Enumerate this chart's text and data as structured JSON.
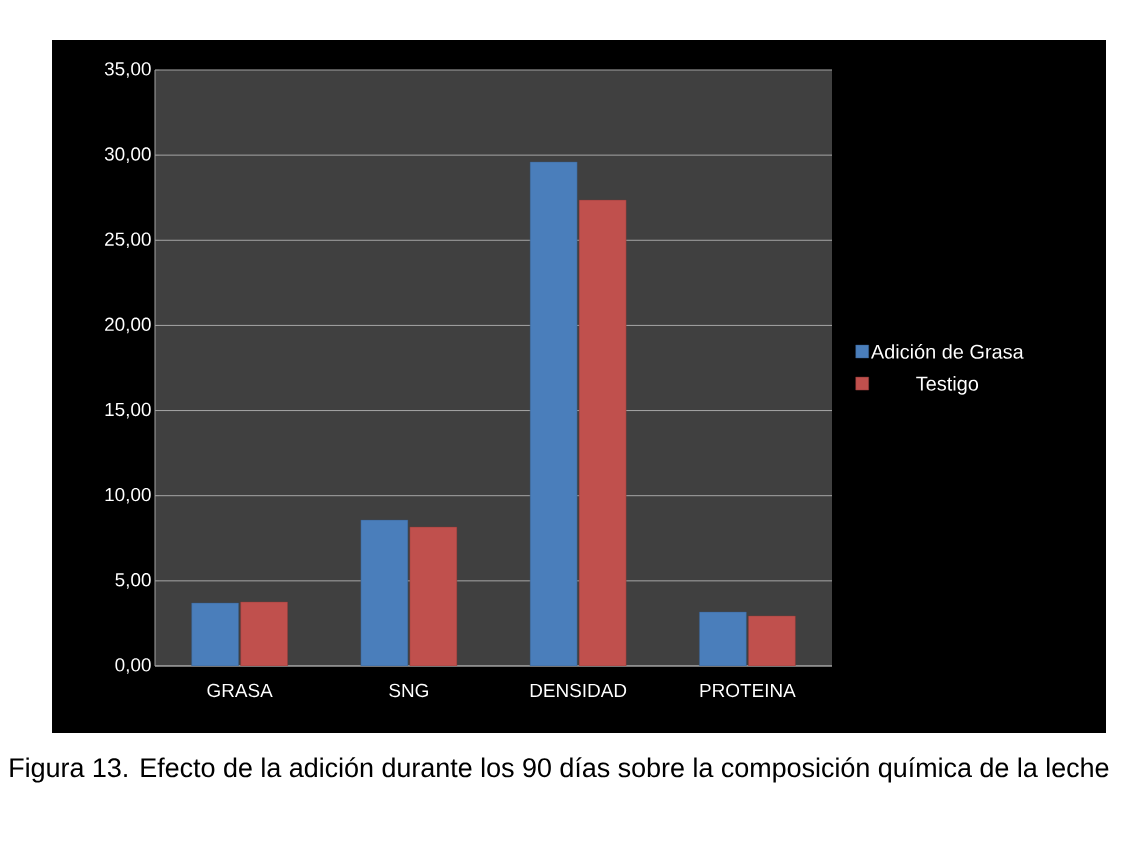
{
  "chart_data": {
    "type": "bar",
    "categories": [
      "GRASA",
      "SNG",
      "DENSIDAD",
      "PROTEINA"
    ],
    "series": [
      {
        "name": "Adición de Grasa",
        "color": "#4a7ebb",
        "values": [
          3.7,
          8.57,
          29.6,
          3.17
        ]
      },
      {
        "name": "Testigo",
        "color": "#c0504d",
        "values": [
          3.76,
          8.16,
          27.36,
          2.94
        ]
      }
    ],
    "ylim": [
      0,
      35
    ],
    "yticks": [
      {
        "value": 0,
        "label": "0,00"
      },
      {
        "value": 5,
        "label": "5,00"
      },
      {
        "value": 10,
        "label": "10,00"
      },
      {
        "value": 15,
        "label": "15,00"
      },
      {
        "value": 20,
        "label": "20,00"
      },
      {
        "value": 25,
        "label": "25,00"
      },
      {
        "value": 30,
        "label": "30,00"
      },
      {
        "value": 35,
        "label": "35,00"
      }
    ],
    "grid": "y",
    "legend": "right",
    "annotations": [
      "Figura 13. Efecto de la adición durante los 90 días sobre la composición química de la leche"
    ]
  }
}
